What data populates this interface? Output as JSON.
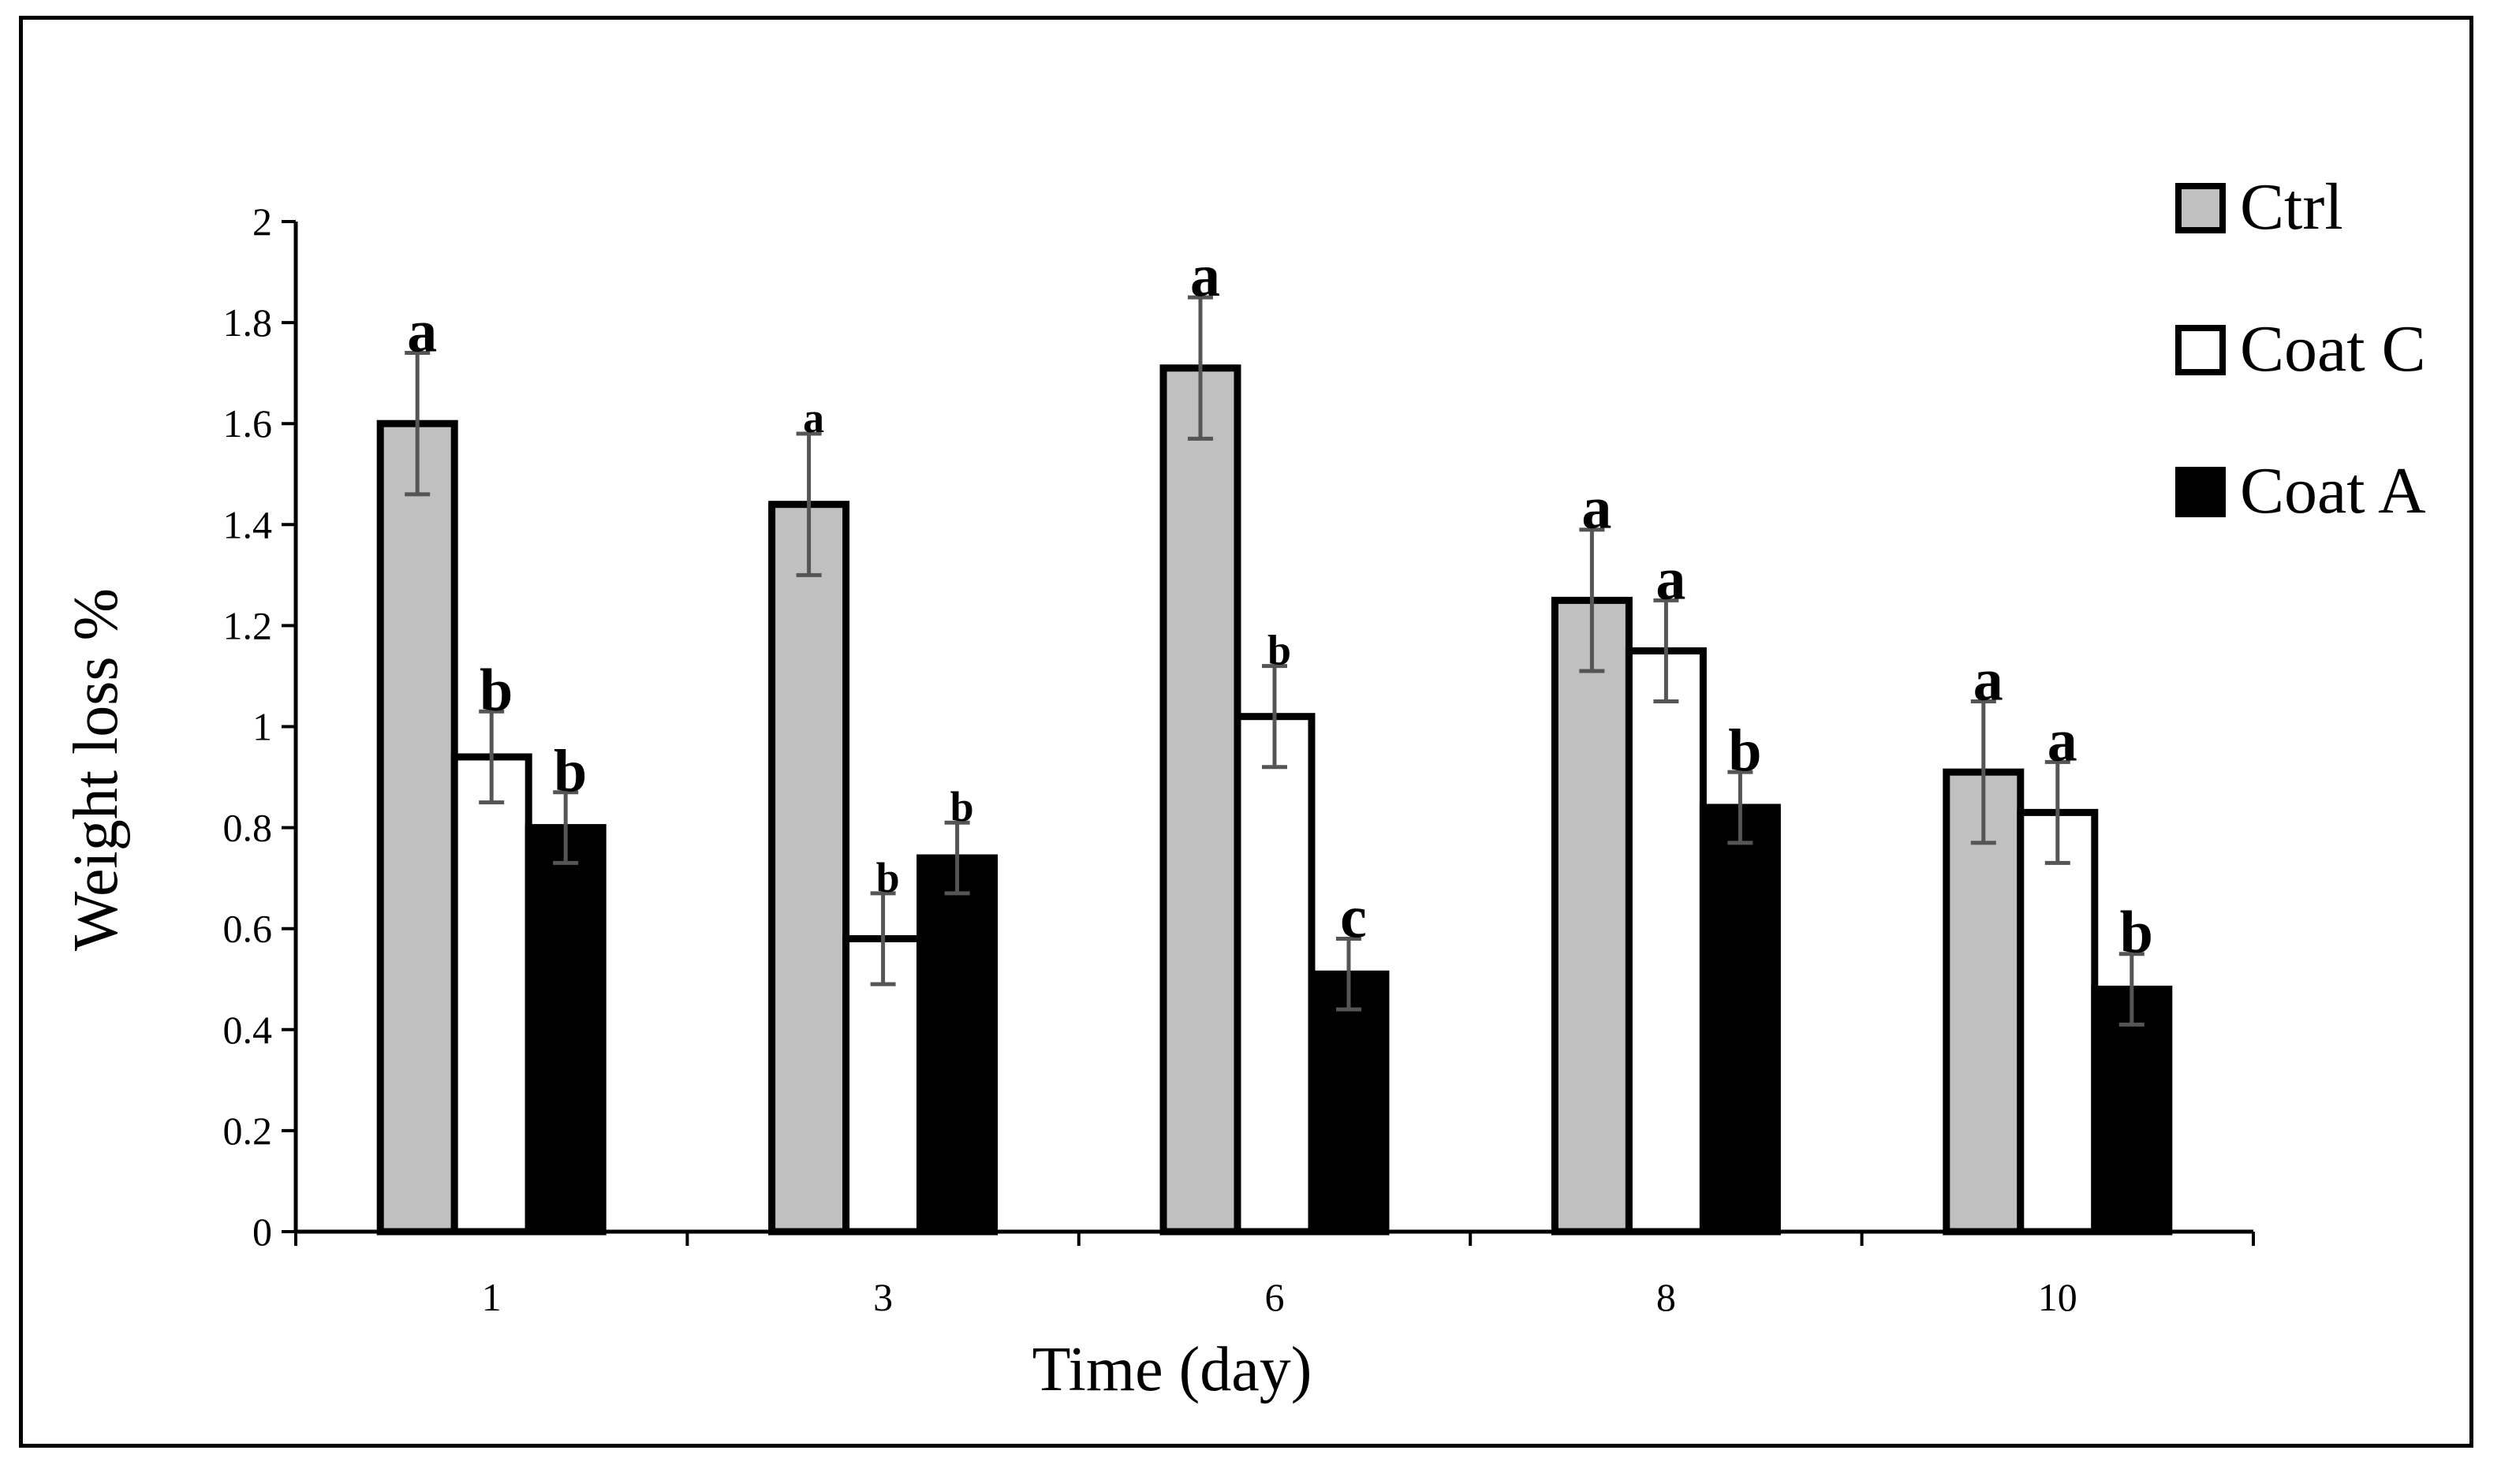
{
  "chart_data": {
    "type": "bar",
    "title": "",
    "xlabel": "Time (day)",
    "ylabel": "Weight loss %",
    "ylim": [
      0,
      2
    ],
    "yticks": [
      "0",
      "0.2",
      "0.4",
      "0.6",
      "0.8",
      "1",
      "1.2",
      "1.4",
      "1.6",
      "1.8",
      "2"
    ],
    "categories": [
      "1",
      "3",
      "6",
      "8",
      "10"
    ],
    "legend_position": "top-right",
    "series": [
      {
        "name": "Ctrl",
        "color": "#c0c0c0",
        "values": [
          1.6,
          1.44,
          1.71,
          1.25,
          0.91
        ],
        "errors": [
          0.14,
          0.14,
          0.14,
          0.14,
          0.14
        ],
        "letters": [
          "a",
          "a",
          "a",
          "a",
          "a"
        ],
        "letter_sizes": [
          "large",
          "small",
          "large",
          "large",
          "large"
        ]
      },
      {
        "name": "Coat C",
        "color": "#ffffff",
        "values": [
          0.94,
          0.58,
          1.02,
          1.15,
          0.83
        ],
        "errors": [
          0.09,
          0.09,
          0.1,
          0.1,
          0.1
        ],
        "letters": [
          "b",
          "b",
          "b",
          "a",
          "a"
        ],
        "letter_sizes": [
          "large",
          "small",
          "small",
          "large",
          "large"
        ]
      },
      {
        "name": "Coat A",
        "color": "#000000",
        "values": [
          0.8,
          0.74,
          0.51,
          0.84,
          0.48
        ],
        "errors": [
          0.07,
          0.07,
          0.07,
          0.07,
          0.07
        ],
        "letters": [
          "b",
          "b",
          "c",
          "b",
          "b"
        ],
        "letter_sizes": [
          "large",
          "small",
          "large",
          "large",
          "large"
        ]
      }
    ]
  }
}
